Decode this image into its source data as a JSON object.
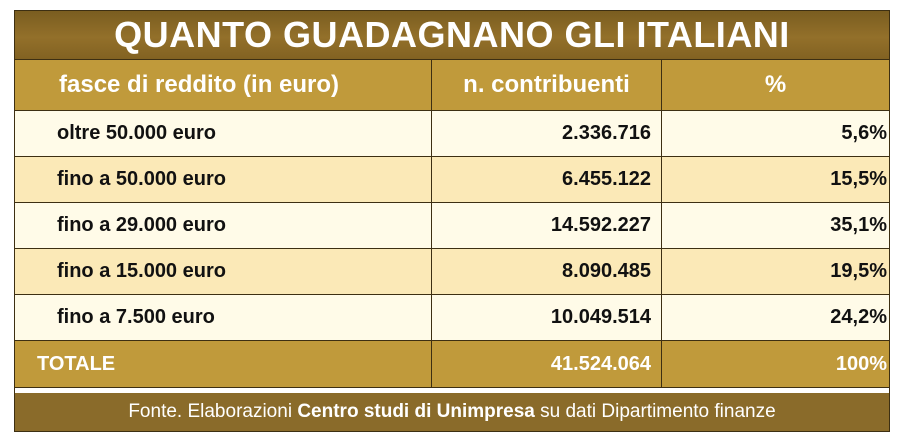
{
  "title": "QUANTO GUADAGNANO GLI ITALIANI",
  "columns": [
    "fasce di reddito (in euro)",
    "n. contribuenti",
    "%"
  ],
  "rows": [
    {
      "label": "oltre 50.000 euro",
      "count": "2.336.716",
      "pct": "5,6%"
    },
    {
      "label": "fino a 50.000 euro",
      "count": "6.455.122",
      "pct": "15,5%"
    },
    {
      "label": "fino a 29.000 euro",
      "count": "14.592.227",
      "pct": "35,1%"
    },
    {
      "label": "fino a 15.000 euro",
      "count": "8.090.485",
      "pct": "19,5%"
    },
    {
      "label": "fino a 7.500 euro",
      "count": "10.049.514",
      "pct": "24,2%"
    }
  ],
  "total": {
    "label": "TOTALE",
    "count": "41.524.064",
    "pct": "100%"
  },
  "source": {
    "prefix": "Fonte. Elaborazioni ",
    "bold": "Centro studi di Unimpresa",
    "suffix": " su dati Dipartimento finanze"
  },
  "colors": {
    "title_bg": "#8a6b2a",
    "header_bg": "#c09a3b",
    "row_light": "#fffbe8",
    "row_dark": "#fbe9b7",
    "border": "#3d2f12"
  },
  "chart_data": {
    "type": "table",
    "title": "QUANTO GUADAGNANO GLI ITALIANI",
    "columns": [
      "fasce di reddito (in euro)",
      "n. contribuenti",
      "%"
    ],
    "categories": [
      "oltre 50.000 euro",
      "fino a 50.000 euro",
      "fino a 29.000 euro",
      "fino a 15.000 euro",
      "fino a 7.500 euro"
    ],
    "series": [
      {
        "name": "n. contribuenti",
        "values": [
          2336716,
          6455122,
          14592227,
          8090485,
          10049514
        ]
      },
      {
        "name": "%",
        "values": [
          5.6,
          15.5,
          35.1,
          19.5,
          24.2
        ]
      }
    ],
    "total": {
      "n. contribuenti": 41524064,
      "%": 100
    }
  }
}
